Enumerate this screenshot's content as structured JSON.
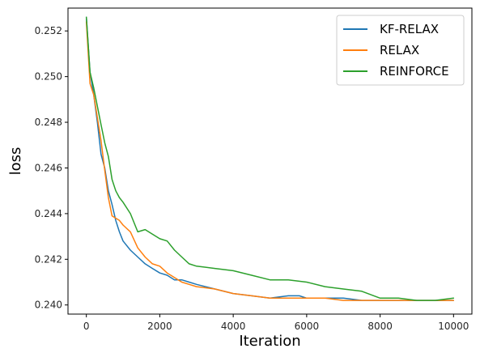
{
  "chart_data": {
    "type": "line",
    "title": "",
    "xlabel": "Iteration",
    "ylabel": "loss",
    "xlim": [
      -500,
      10500
    ],
    "ylim": [
      0.2396,
      0.253
    ],
    "xticks": [
      0,
      2000,
      4000,
      6000,
      8000,
      10000
    ],
    "xtick_labels": [
      "0",
      "2000",
      "4000",
      "6000",
      "8000",
      "10000"
    ],
    "yticks": [
      0.24,
      0.242,
      0.244,
      0.246,
      0.248,
      0.25,
      0.252
    ],
    "ytick_labels": [
      "0.240",
      "0.242",
      "0.244",
      "0.246",
      "0.248",
      "0.250",
      "0.252"
    ],
    "grid": false,
    "legend_position": "top-right",
    "series": [
      {
        "name": "KF-RELAX",
        "color": "#1f77b4",
        "x": [
          0,
          100,
          200,
          300,
          400,
          500,
          600,
          700,
          800,
          900,
          1000,
          1200,
          1400,
          1600,
          1800,
          2000,
          2200,
          2400,
          2600,
          2800,
          3000,
          3500,
          4000,
          4500,
          5000,
          5500,
          5800,
          6000,
          6500,
          7000,
          7500,
          8000,
          8500,
          9000,
          9500,
          10000
        ],
        "y": [
          0.2526,
          0.2502,
          0.2492,
          0.248,
          0.2466,
          0.246,
          0.245,
          0.2444,
          0.2437,
          0.2432,
          0.2428,
          0.2424,
          0.2421,
          0.2418,
          0.2416,
          0.2414,
          0.2413,
          0.2411,
          0.2411,
          0.241,
          0.2409,
          0.2407,
          0.2405,
          0.2404,
          0.2403,
          0.2404,
          0.2404,
          0.2403,
          0.2403,
          0.2403,
          0.2402,
          0.2402,
          0.2402,
          0.2402,
          0.2402,
          0.2402
        ]
      },
      {
        "name": "RELAX",
        "color": "#ff7f0e",
        "x": [
          0,
          100,
          200,
          300,
          400,
          500,
          600,
          700,
          800,
          900,
          1000,
          1200,
          1400,
          1600,
          1800,
          2000,
          2200,
          2400,
          2600,
          2800,
          3000,
          3500,
          4000,
          4500,
          5000,
          5500,
          6000,
          6500,
          7000,
          7500,
          8000,
          8500,
          9000,
          9500,
          10000
        ],
        "y": [
          0.2524,
          0.2497,
          0.2492,
          0.2482,
          0.2472,
          0.2459,
          0.2447,
          0.2439,
          0.2438,
          0.2437,
          0.2435,
          0.2432,
          0.2425,
          0.2421,
          0.2418,
          0.2417,
          0.2414,
          0.2412,
          0.241,
          0.2409,
          0.2408,
          0.2407,
          0.2405,
          0.2404,
          0.2403,
          0.2403,
          0.2403,
          0.2403,
          0.2402,
          0.2402,
          0.2402,
          0.2402,
          0.2402,
          0.2402,
          0.2402
        ]
      },
      {
        "name": "REINFORCE",
        "color": "#2ca02c",
        "x": [
          0,
          100,
          200,
          300,
          400,
          500,
          600,
          700,
          800,
          900,
          1000,
          1200,
          1400,
          1600,
          1800,
          2000,
          2200,
          2400,
          2600,
          2800,
          3000,
          3500,
          4000,
          4500,
          5000,
          5500,
          6000,
          6500,
          7000,
          7500,
          8000,
          8500,
          9000,
          9500,
          10000
        ],
        "y": [
          0.2526,
          0.2502,
          0.2495,
          0.2487,
          0.2479,
          0.2471,
          0.2465,
          0.2455,
          0.245,
          0.2447,
          0.2445,
          0.244,
          0.2432,
          0.2433,
          0.2431,
          0.2429,
          0.2428,
          0.2424,
          0.2421,
          0.2418,
          0.2417,
          0.2416,
          0.2415,
          0.2413,
          0.2411,
          0.2411,
          0.241,
          0.2408,
          0.2407,
          0.2406,
          0.2403,
          0.2403,
          0.2402,
          0.2402,
          0.2403
        ]
      }
    ]
  }
}
